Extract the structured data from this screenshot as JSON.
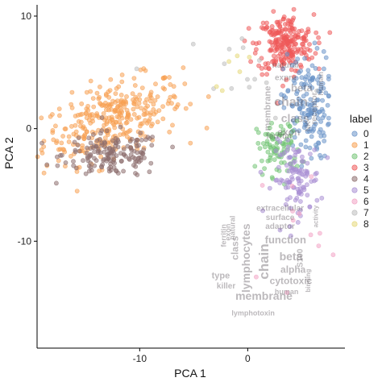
{
  "chart_data": {
    "type": "scatter",
    "title": "",
    "xlabel": "PCA 1",
    "ylabel": "PCA 2",
    "xlim": [
      -19.5,
      9
    ],
    "ylim": [
      -19.5,
      11
    ],
    "x_ticks": [
      -10,
      0
    ],
    "y_ticks": [
      10,
      0,
      -10
    ],
    "grid": false,
    "legend": {
      "title": "label",
      "placement": "right",
      "entries": [
        "0",
        "1",
        "2",
        "3",
        "4",
        "5",
        "6",
        "7",
        "8"
      ]
    },
    "series": [
      {
        "name": "0",
        "color": "#6a93c8",
        "center": [
          5.5,
          2.0
        ],
        "spread": [
          1.1,
          2.4
        ],
        "count": 150
      },
      {
        "name": "1",
        "color": "#f7a052",
        "center": [
          -12.5,
          0.8
        ],
        "spread": [
          3.2,
          1.6
        ],
        "count": 330
      },
      {
        "name": "2",
        "color": "#74c476",
        "center": [
          2.9,
          -1.8
        ],
        "spread": [
          1.0,
          1.2
        ],
        "count": 90
      },
      {
        "name": "3",
        "color": "#ef5a5a",
        "center": [
          3.5,
          7.5
        ],
        "spread": [
          1.3,
          1.3
        ],
        "count": 230
      },
      {
        "name": "4",
        "color": "#8c6d6d",
        "center": [
          -12.5,
          -2.3
        ],
        "spread": [
          2.3,
          1.0
        ],
        "count": 160
      },
      {
        "name": "5",
        "color": "#a98fd4",
        "center": [
          4.5,
          -4.5
        ],
        "spread": [
          1.1,
          1.6
        ],
        "count": 110
      },
      {
        "name": "6",
        "color": "#f2a2c4",
        "center": [
          4.0,
          -8.0
        ],
        "spread": [
          1.5,
          3.0
        ],
        "count": 12
      },
      {
        "name": "7",
        "color": "#bdbdbd",
        "center": [
          1.0,
          5.0
        ],
        "spread": [
          3.0,
          2.0
        ],
        "count": 15
      },
      {
        "name": "8",
        "color": "#e6d97a",
        "center": [
          -1.0,
          5.5
        ],
        "spread": [
          1.5,
          1.0
        ],
        "count": 6
      }
    ],
    "annotations": {
      "upper_cluster_words": [
        "natural",
        "expre",
        "beta",
        "chain",
        "class",
        "exon",
        "ferritin",
        "membrane",
        "receptor",
        "human",
        "NK"
      ],
      "lower_cluster_words": [
        "extracellular",
        "surface",
        "adaptor",
        "function",
        "beta",
        "alpha",
        "cytotoxic",
        "membrane",
        "lymphocytes",
        "chain",
        "class",
        "type",
        "killer",
        "natural",
        "human",
        "lymphotoxin",
        "S100",
        "binding",
        "activity",
        "ferritin",
        "exon"
      ]
    }
  }
}
